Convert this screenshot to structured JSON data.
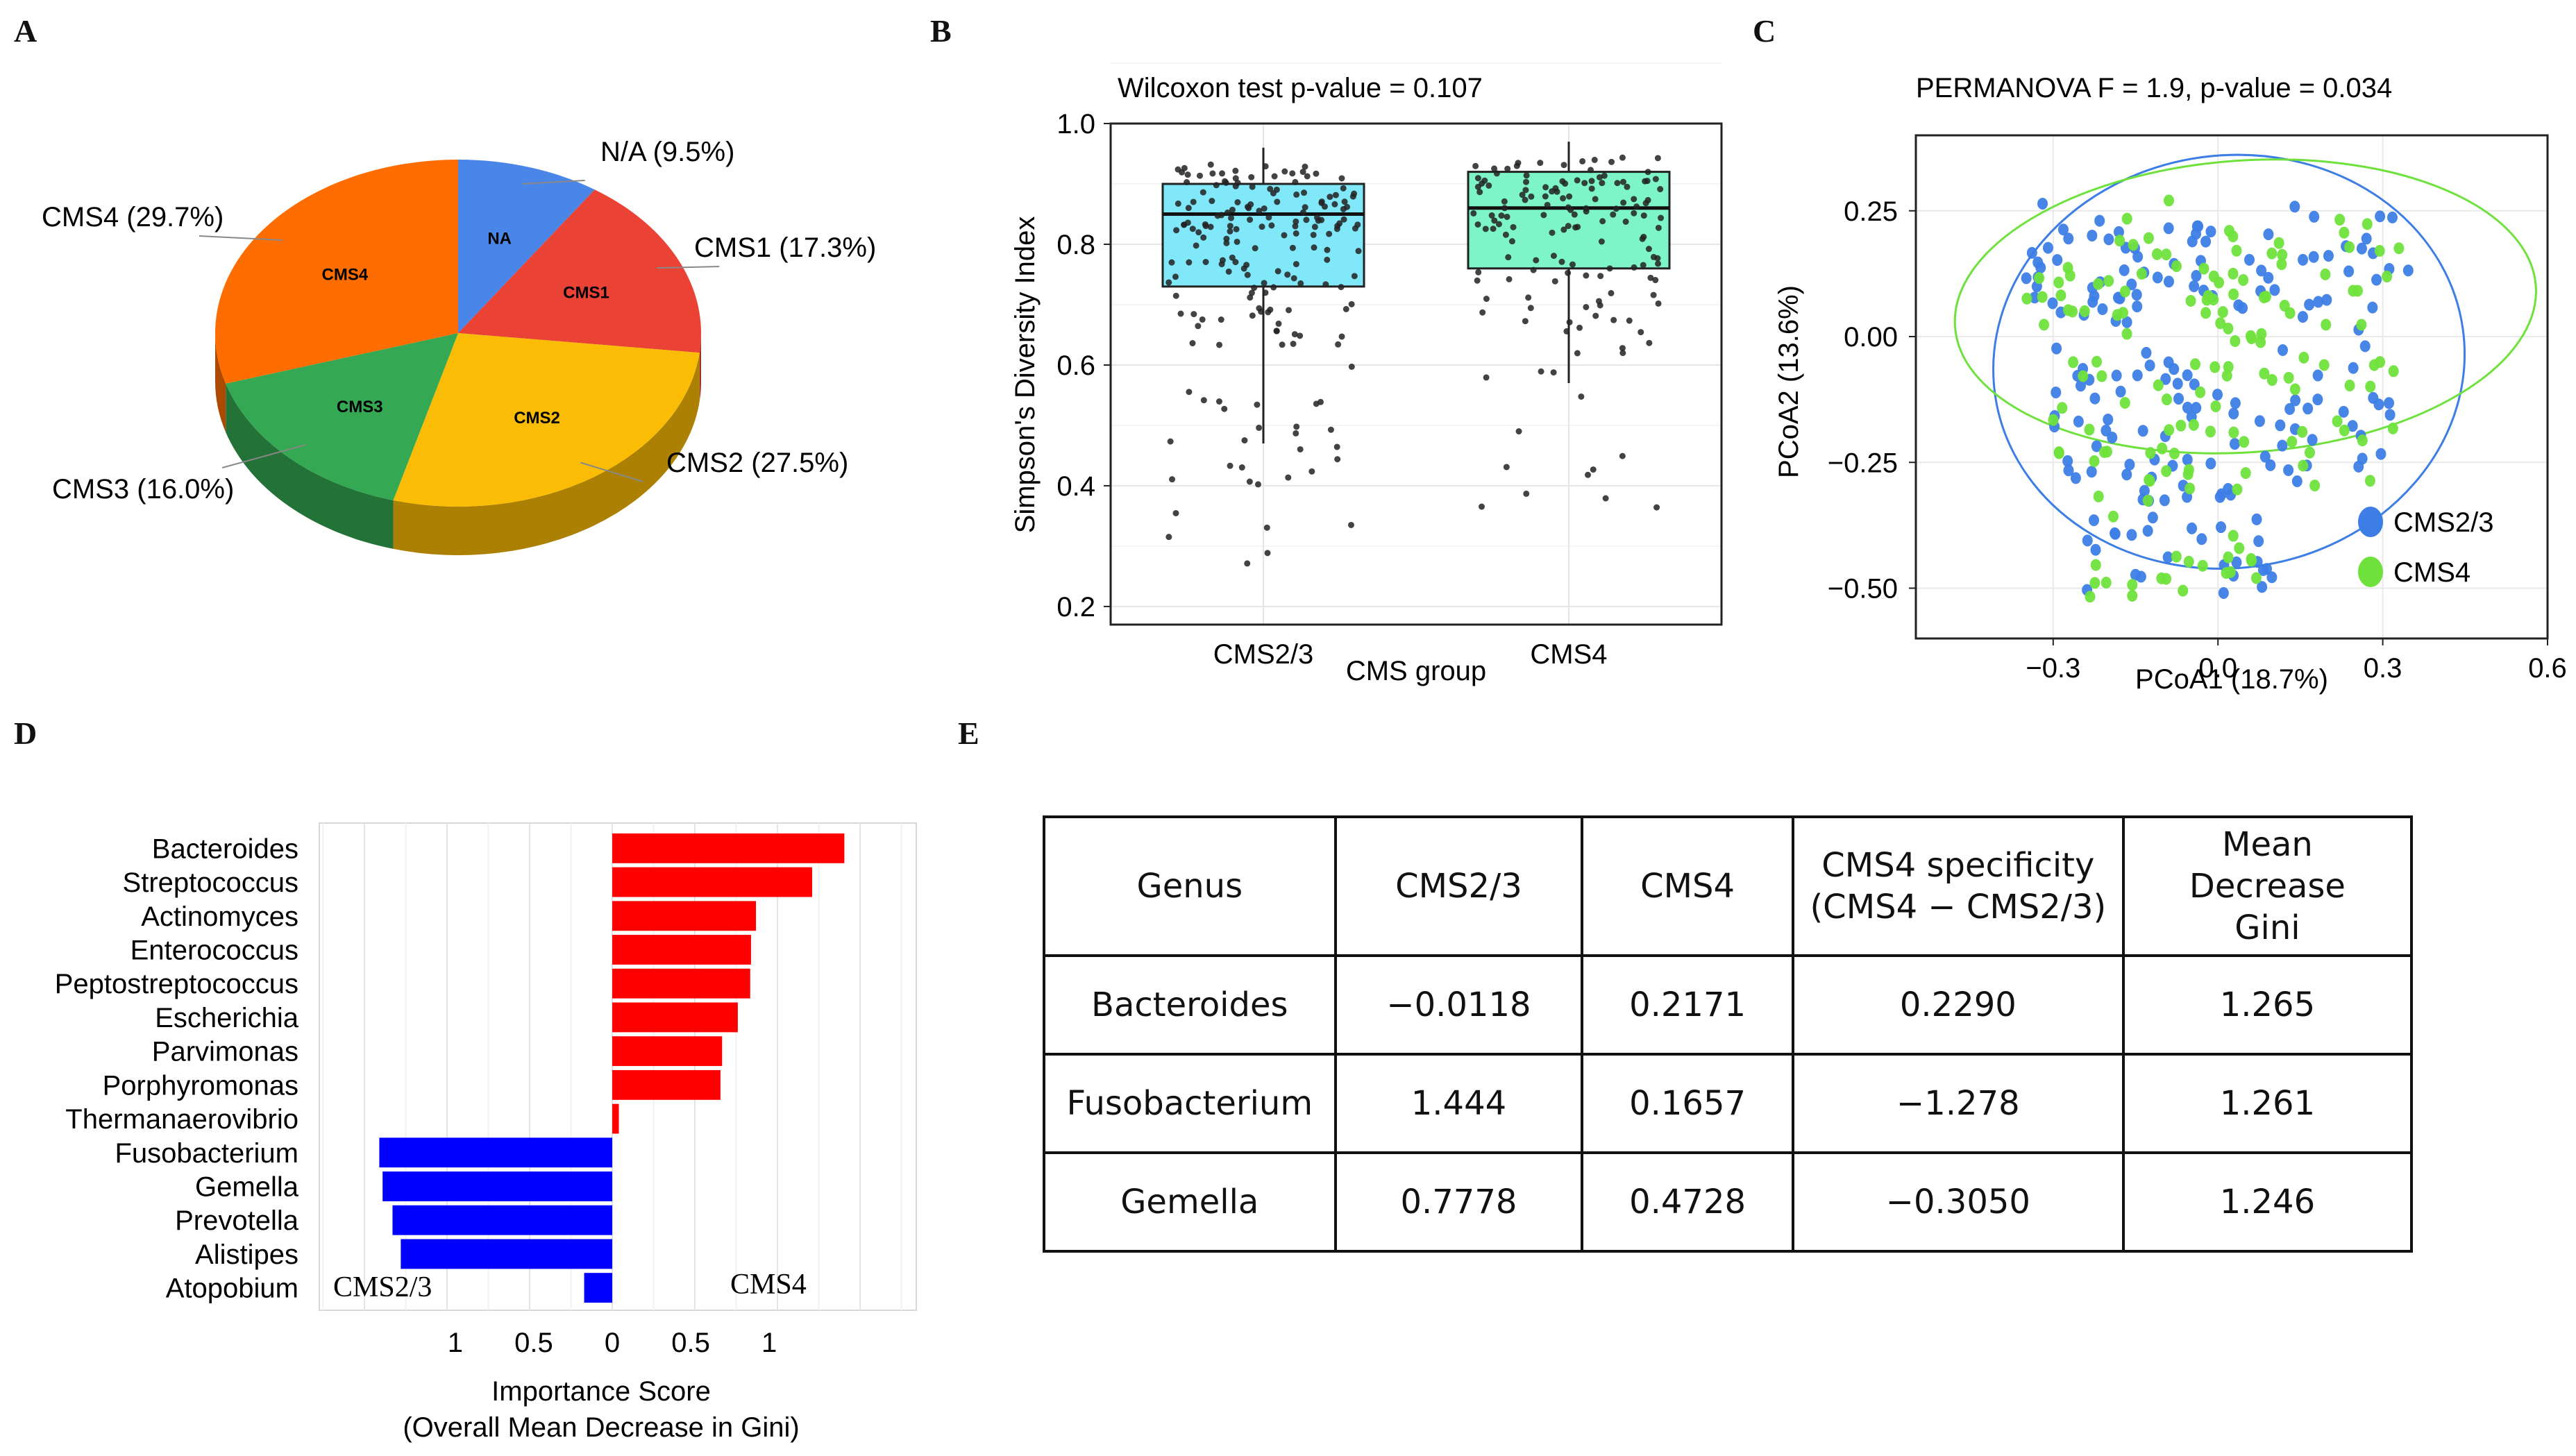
{
  "panel_labels": [
    "A",
    "B",
    "C",
    "D",
    "E"
  ],
  "chart_data": [
    {
      "id": "A",
      "type": "pie",
      "slices": [
        {
          "label": "NA",
          "callout": "N/A (9.5%)",
          "value": 9.5,
          "color": "#4a86e8"
        },
        {
          "label": "CMS1",
          "callout": "CMS1 (17.3%)",
          "value": 17.3,
          "color": "#ea4335"
        },
        {
          "label": "CMS2",
          "callout": "CMS2 (27.5%)",
          "value": 27.5,
          "color": "#fbbc05"
        },
        {
          "label": "CMS3",
          "callout": "CMS3 (16.0%)",
          "value": 16.0,
          "color": "#34a853"
        },
        {
          "label": "CMS4",
          "callout": "CMS4 (29.7%)",
          "value": 29.7,
          "color": "#ff6d01"
        }
      ]
    },
    {
      "id": "B",
      "type": "box",
      "title": "Wilcoxon test p-value = 0.107",
      "xlabel": "CMS group",
      "ylabel": "Simpson's Diversity Index",
      "ylim": [
        0.17,
        1.0
      ],
      "yticks": [
        "0.2",
        "0.4",
        "0.6",
        "0.8",
        "1.0"
      ],
      "groups": [
        {
          "name": "CMS2/3",
          "q1": 0.73,
          "median": 0.85,
          "q3": 0.9,
          "whisker_low": 0.47,
          "whisker_high": 0.96,
          "color": "#80e8f8",
          "n": 190
        },
        {
          "name": "CMS4",
          "q1": 0.76,
          "median": 0.86,
          "q3": 0.92,
          "whisker_low": 0.57,
          "whisker_high": 0.97,
          "color": "#7df5c8",
          "n": 150
        }
      ]
    },
    {
      "id": "C",
      "type": "scatter",
      "title": "PERMANOVA F = 1.9, p-value = 0.034",
      "xlabel": "PCoA1 (18.7%)",
      "ylabel": "PCoA2 (13.6%)",
      "xlim": [
        -0.55,
        0.6
      ],
      "ylim": [
        -0.6,
        0.4
      ],
      "xticks": [
        "−0.3",
        "0.0",
        "0.3",
        "0.6"
      ],
      "yticks": [
        "0.25",
        "0.00",
        "−0.25",
        "−0.50"
      ],
      "series": [
        {
          "name": "CMS2/3",
          "color": "#3d7ee6",
          "n": 190
        },
        {
          "name": "CMS4",
          "color": "#6fe13c",
          "n": 150
        }
      ]
    },
    {
      "id": "D",
      "type": "bar",
      "xlabel": "Importance Score",
      "xlabel2": "(Overall Mean Decrease in Gini)",
      "xticks": [
        "1",
        "0.5",
        "0",
        "0.5",
        "1"
      ],
      "left_group": "CMS2/3",
      "right_group": "CMS4",
      "categories": [
        "Bacteroides",
        "Streptococcus",
        "Actinomyces",
        "Enterococcus",
        "Peptostreptococcus",
        "Escherichia",
        "Parvimonas",
        "Porphyromonas",
        "Thermanaerovibrio",
        "Fusobacterium",
        "Gemella",
        "Prevotella",
        "Alistipes",
        "Atopobium"
      ],
      "values": [
        1.405,
        1.21,
        0.87,
        0.84,
        0.835,
        0.76,
        0.665,
        0.655,
        0.04,
        -1.41,
        -1.39,
        -1.33,
        -1.28,
        -0.17
      ],
      "colors": {
        "positive": "#ff0000",
        "negative": "#0000ff"
      }
    }
  ],
  "table_e": {
    "headers": [
      {
        "line1": "Genus",
        "line2": "",
        "line3": ""
      },
      {
        "line1": "CMS2/3",
        "line2": "",
        "line3": ""
      },
      {
        "line1": "CMS4",
        "line2": "",
        "line3": ""
      },
      {
        "line1": "CMS4 specificity",
        "line2": "(CMS4 − CMS2/3)",
        "line3": ""
      },
      {
        "line1": "Mean",
        "line2": "Decrease",
        "line3": "Gini"
      }
    ],
    "rows": [
      [
        "Bacteroides",
        "−0.0118",
        "0.2171",
        "0.2290",
        "1.265"
      ],
      [
        "Fusobacterium",
        "1.444",
        "0.1657",
        "−1.278",
        "1.261"
      ],
      [
        "Gemella",
        "0.7778",
        "0.4728",
        "−0.3050",
        "1.246"
      ]
    ]
  }
}
